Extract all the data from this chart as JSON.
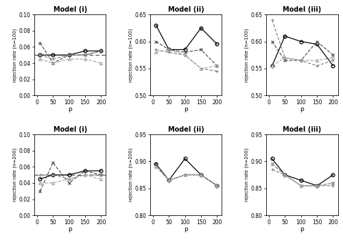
{
  "p": [
    10,
    50,
    100,
    150,
    200
  ],
  "n100_model_i": {
    "globaltest": [
      0.05,
      0.05,
      0.05,
      0.055,
      0.055
    ],
    "method_a": [
      0.065,
      0.04,
      0.05,
      0.05,
      0.055
    ],
    "method_b": [
      0.05,
      0.045,
      0.05,
      0.05,
      0.055
    ],
    "permutation": [
      0.045,
      0.04,
      0.045,
      0.045,
      0.04
    ]
  },
  "n100_model_ii": {
    "globaltest": [
      0.63,
      0.585,
      0.585,
      0.625,
      0.595
    ],
    "method_a": [
      0.6,
      0.585,
      0.58,
      0.585,
      0.555
    ],
    "method_b": [
      0.585,
      0.58,
      0.575,
      0.55,
      0.545
    ],
    "permutation": [
      0.58,
      0.585,
      0.575,
      0.55,
      0.555
    ]
  },
  "n100_model_iii": {
    "globaltest": [
      0.555,
      0.61,
      0.6,
      0.595,
      0.555
    ],
    "method_a": [
      0.6,
      0.565,
      0.565,
      0.6,
      0.575
    ],
    "method_b": [
      0.64,
      0.57,
      0.565,
      0.555,
      0.565
    ],
    "permutation": [
      0.555,
      0.57,
      0.565,
      0.565,
      0.57
    ]
  },
  "n200_model_i": {
    "globaltest": [
      0.045,
      0.05,
      0.05,
      0.055,
      0.055
    ],
    "method_a": [
      0.03,
      0.065,
      0.04,
      0.055,
      0.05
    ],
    "method_b": [
      0.05,
      0.05,
      0.045,
      0.05,
      0.05
    ],
    "permutation": [
      0.04,
      0.04,
      0.045,
      0.05,
      0.045
    ]
  },
  "n200_model_ii": {
    "globaltest": [
      0.895,
      0.865,
      0.905,
      0.875,
      0.855
    ],
    "method_a": [
      0.895,
      0.865,
      0.875,
      0.875,
      0.855
    ],
    "method_b": [
      0.89,
      0.865,
      0.875,
      0.875,
      0.855
    ],
    "permutation": [
      0.89,
      0.865,
      0.875,
      0.875,
      0.855
    ]
  },
  "n200_model_iii": {
    "globaltest": [
      0.905,
      0.875,
      0.865,
      0.855,
      0.875
    ],
    "method_a": [
      0.895,
      0.875,
      0.855,
      0.855,
      0.86
    ],
    "method_b": [
      0.885,
      0.875,
      0.855,
      0.855,
      0.855
    ],
    "permutation": [
      0.895,
      0.875,
      0.855,
      0.855,
      0.86
    ]
  },
  "ylims": {
    "n100_model_i": [
      0.0,
      0.1
    ],
    "n100_model_ii": [
      0.5,
      0.65
    ],
    "n100_model_iii": [
      0.5,
      0.65
    ],
    "n200_model_i": [
      0.0,
      0.1
    ],
    "n200_model_ii": [
      0.8,
      0.95
    ],
    "n200_model_iii": [
      0.8,
      0.95
    ]
  },
  "yticks": {
    "n100_model_i": [
      0.0,
      0.02,
      0.04,
      0.06,
      0.08,
      0.1
    ],
    "n100_model_ii": [
      0.5,
      0.55,
      0.6,
      0.65
    ],
    "n100_model_iii": [
      0.5,
      0.55,
      0.6,
      0.65
    ],
    "n200_model_i": [
      0.0,
      0.02,
      0.04,
      0.06,
      0.08,
      0.1
    ],
    "n200_model_ii": [
      0.8,
      0.85,
      0.9,
      0.95
    ],
    "n200_model_iii": [
      0.8,
      0.85,
      0.9,
      0.95
    ]
  },
  "ylabels": {
    "n100": "rejection rate (n=100)",
    "n200": "rejection rate (n=200)"
  },
  "titles": [
    "Model (i)",
    "Model (ii)",
    "Model (iii)"
  ],
  "dashed_ref": 0.05,
  "method_styles": {
    "globaltest": {
      "color": "#000000",
      "marker": "o",
      "ls": "-",
      "lw": 0.9,
      "ms": 3.5,
      "mfc": "none",
      "mew": 0.9
    },
    "method_a": {
      "color": "#555555",
      "marker": "x",
      "ls": "--",
      "lw": 0.9,
      "ms": 3.5,
      "mfc": "#555555",
      "mew": 0.9
    },
    "method_b": {
      "color": "#888888",
      "marker": "+",
      "ls": "--",
      "lw": 0.9,
      "ms": 3.5,
      "mfc": "#888888",
      "mew": 0.9
    },
    "permutation": {
      "color": "#aaaaaa",
      "marker": "^",
      "ls": "--",
      "lw": 0.9,
      "ms": 3.0,
      "mfc": "none",
      "mew": 0.9
    }
  }
}
